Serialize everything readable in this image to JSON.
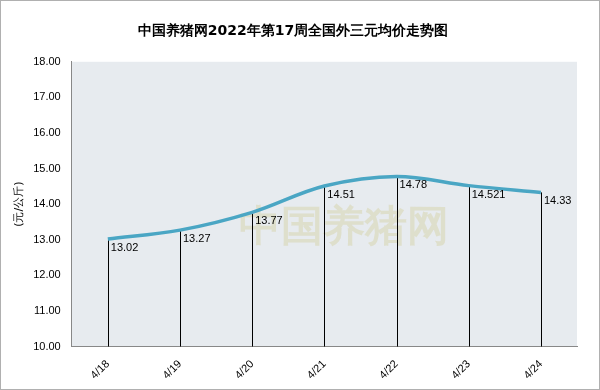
{
  "chart_data": {
    "type": "line",
    "title": "中国养猪网2022年第17周全国外三元均价走势图",
    "y_label": "(元/公斤)",
    "annotations": [
      "中国养猪网"
    ],
    "categories": [
      "4/18",
      "4/19",
      "4/20",
      "4/21",
      "4/22",
      "4/23",
      "4/24"
    ],
    "values": [
      13.02,
      13.27,
      13.77,
      14.51,
      14.78,
      14.521,
      14.33
    ],
    "color": "#4aa6c4",
    "marker": "none",
    "line_style": "solid",
    "ylim": [
      10,
      18
    ],
    "yticks": [
      {
        "value": 10,
        "label": "10.00"
      },
      {
        "value": 11,
        "label": "11.00"
      },
      {
        "value": 12,
        "label": "12.00"
      },
      {
        "value": 13,
        "label": "13.00"
      },
      {
        "value": 14,
        "label": "14.00"
      },
      {
        "value": 15,
        "label": "15.00"
      },
      {
        "value": 16,
        "label": "16.00"
      },
      {
        "value": 17,
        "label": "17.00"
      },
      {
        "value": 18,
        "label": "18.00"
      }
    ],
    "grid": false,
    "data_labels": true
  }
}
